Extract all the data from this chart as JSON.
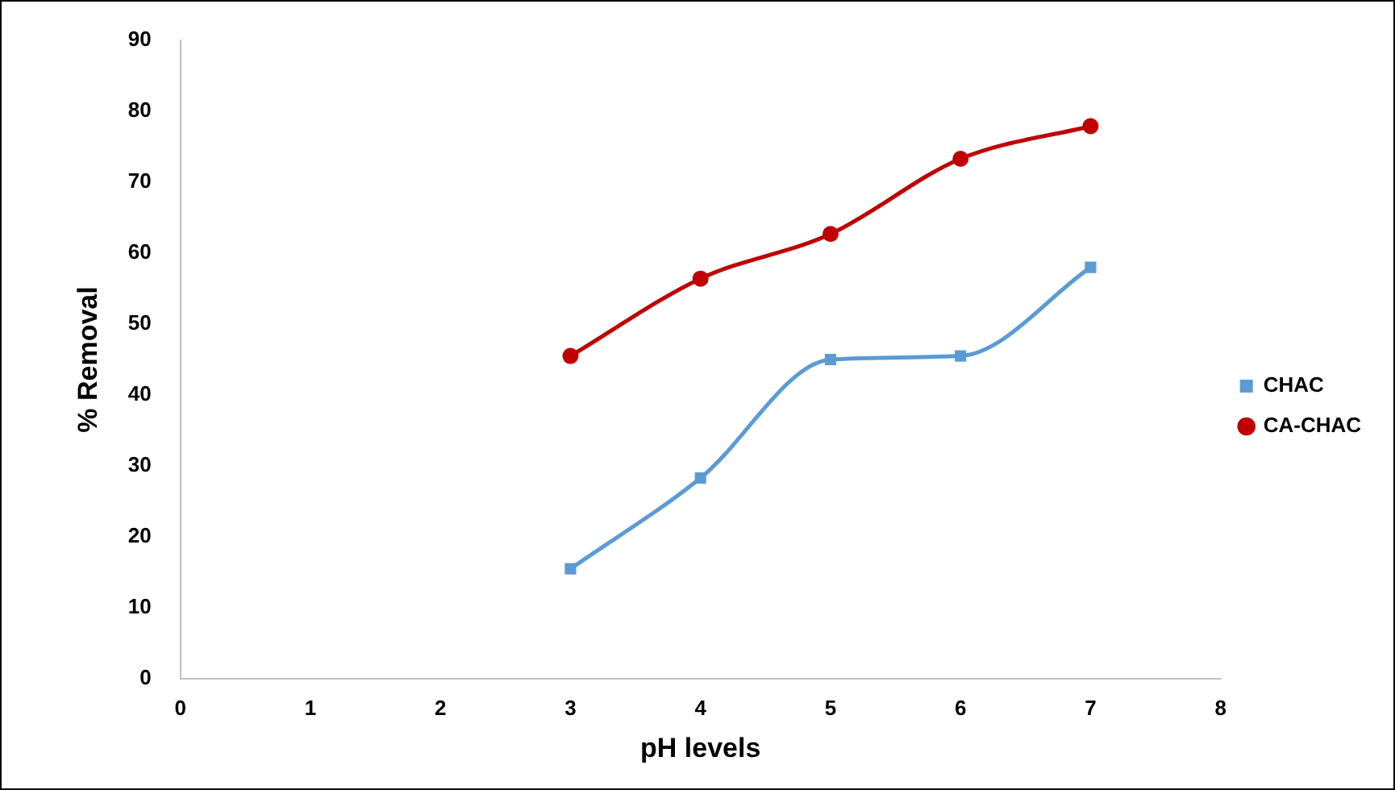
{
  "chart_data": {
    "type": "line",
    "xlabel": "pH levels",
    "ylabel": "% Removal",
    "x": [
      3,
      4,
      5,
      6,
      7
    ],
    "series": [
      {
        "name": "CHAC",
        "color": "#5b9bd5",
        "marker": "square",
        "values": [
          15.5,
          28.3,
          45,
          45.5,
          58
        ]
      },
      {
        "name": "CA-CHAC",
        "color": "#c00000",
        "marker": "circle",
        "values": [
          45.5,
          56.4,
          62.7,
          73.3,
          77.9
        ]
      }
    ],
    "xlim": [
      0,
      8
    ],
    "xticks": [
      0,
      1,
      2,
      3,
      4,
      5,
      6,
      7,
      8
    ],
    "ylim": [
      0,
      90
    ],
    "yticks": [
      0,
      10,
      20,
      30,
      40,
      50,
      60,
      70,
      80,
      90
    ],
    "grid": false,
    "legend": "right"
  }
}
